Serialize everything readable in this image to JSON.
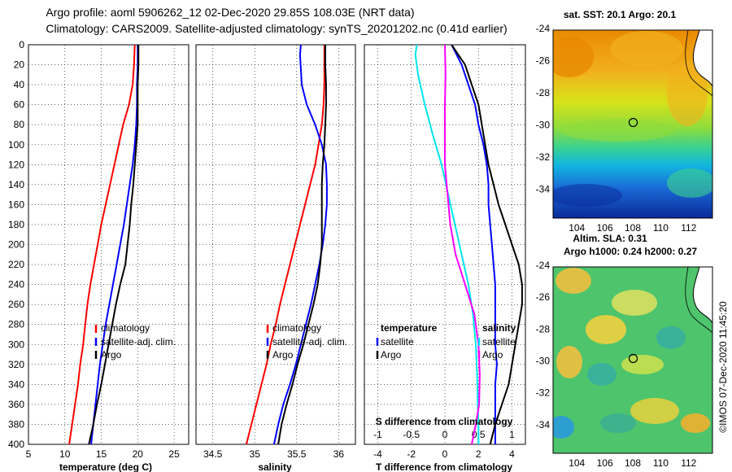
{
  "header": {
    "line1": "Argo profile: aoml 5906262_12 02-Dec-2020 29.85S 108.03E (NRT data)",
    "line2": "Climatology: CARS2009. Satellite-adjusted climatology: synTS_20201202.nc (0.41d earlier)"
  },
  "side_label": "©IMOS 07-Dec-2020 11:45:20",
  "colors": {
    "climatology": "#ff0000",
    "satellite": "#0000ff",
    "argo": "#000000",
    "cyan": "#00e5ee",
    "magenta": "#ff00ff"
  },
  "chart_data": [
    {
      "type": "line",
      "title": "",
      "xlabel": "temperature (deg C)",
      "ylabel": "",
      "xlim": [
        5,
        27
      ],
      "ylim": [
        400,
        0
      ],
      "x_ticks": [
        "5",
        "10",
        "15",
        "20",
        "25"
      ],
      "y_ticks": [
        "0",
        "20",
        "40",
        "60",
        "80",
        "100",
        "120",
        "140",
        "160",
        "180",
        "200",
        "220",
        "240",
        "260",
        "280",
        "300",
        "320",
        "340",
        "360",
        "380",
        "400"
      ],
      "legend": [
        "climatology",
        "satellite-adj. clim.",
        "Argo"
      ],
      "series": [
        {
          "name": "climatology",
          "color": "#ff0000",
          "points": [
            [
              19.6,
              0
            ],
            [
              19.5,
              20
            ],
            [
              19.3,
              40
            ],
            [
              18.8,
              60
            ],
            [
              18.0,
              80
            ],
            [
              17.4,
              100
            ],
            [
              16.8,
              120
            ],
            [
              16.2,
              140
            ],
            [
              15.6,
              160
            ],
            [
              15.0,
              180
            ],
            [
              14.5,
              200
            ],
            [
              14.0,
              220
            ],
            [
              13.5,
              240
            ],
            [
              13.1,
              260
            ],
            [
              12.8,
              280
            ],
            [
              12.5,
              300
            ],
            [
              12.1,
              320
            ],
            [
              11.8,
              340
            ],
            [
              11.4,
              360
            ],
            [
              11.0,
              380
            ],
            [
              10.6,
              400
            ]
          ]
        },
        {
          "name": "satellite-adj. clim.",
          "color": "#0000ff",
          "points": [
            [
              20.0,
              0
            ],
            [
              20.0,
              20
            ],
            [
              19.9,
              40
            ],
            [
              19.9,
              60
            ],
            [
              19.8,
              80
            ],
            [
              19.6,
              100
            ],
            [
              19.3,
              120
            ],
            [
              18.9,
              140
            ],
            [
              18.5,
              160
            ],
            [
              18.1,
              180
            ],
            [
              17.6,
              200
            ],
            [
              17.1,
              220
            ],
            [
              16.6,
              240
            ],
            [
              16.1,
              260
            ],
            [
              15.6,
              280
            ],
            [
              15.2,
              300
            ],
            [
              14.8,
              320
            ],
            [
              14.5,
              340
            ],
            [
              14.2,
              360
            ],
            [
              13.9,
              380
            ],
            [
              13.6,
              400
            ]
          ]
        },
        {
          "name": "Argo",
          "color": "#000000",
          "points": [
            [
              20.1,
              0
            ],
            [
              20.1,
              20
            ],
            [
              20.0,
              40
            ],
            [
              20.0,
              60
            ],
            [
              20.0,
              80
            ],
            [
              19.8,
              100
            ],
            [
              19.6,
              120
            ],
            [
              19.4,
              140
            ],
            [
              19.1,
              160
            ],
            [
              18.9,
              180
            ],
            [
              18.6,
              200
            ],
            [
              18.3,
              220
            ],
            [
              17.6,
              240
            ],
            [
              17.0,
              260
            ],
            [
              16.5,
              280
            ],
            [
              16.0,
              300
            ],
            [
              15.5,
              320
            ],
            [
              15.0,
              340
            ],
            [
              14.4,
              360
            ],
            [
              13.9,
              380
            ],
            [
              13.3,
              400
            ]
          ]
        }
      ]
    },
    {
      "type": "line",
      "title": "",
      "xlabel": "salinity",
      "ylabel": "",
      "xlim": [
        34.3,
        36.2
      ],
      "ylim": [
        400,
        0
      ],
      "x_ticks": [
        "34.5",
        "35",
        "35.5",
        "36"
      ],
      "legend": [
        "climatology",
        "satellite-adj. clim.",
        "Argo"
      ],
      "series": [
        {
          "name": "climatology",
          "color": "#ff0000",
          "points": [
            [
              35.83,
              0
            ],
            [
              35.83,
              20
            ],
            [
              35.83,
              40
            ],
            [
              35.82,
              60
            ],
            [
              35.8,
              80
            ],
            [
              35.76,
              100
            ],
            [
              35.72,
              120
            ],
            [
              35.66,
              140
            ],
            [
              35.6,
              160
            ],
            [
              35.54,
              180
            ],
            [
              35.48,
              200
            ],
            [
              35.42,
              220
            ],
            [
              35.36,
              240
            ],
            [
              35.3,
              260
            ],
            [
              35.25,
              280
            ],
            [
              35.19,
              300
            ],
            [
              35.14,
              320
            ],
            [
              35.08,
              340
            ],
            [
              35.02,
              360
            ],
            [
              34.96,
              380
            ],
            [
              34.9,
              400
            ]
          ]
        },
        {
          "name": "satellite-adj. clim.",
          "color": "#0000ff",
          "points": [
            [
              35.55,
              0
            ],
            [
              35.54,
              10
            ],
            [
              35.56,
              40
            ],
            [
              35.62,
              60
            ],
            [
              35.72,
              80
            ],
            [
              35.8,
              100
            ],
            [
              35.85,
              120
            ],
            [
              35.86,
              140
            ],
            [
              35.86,
              160
            ],
            [
              35.84,
              180
            ],
            [
              35.81,
              200
            ],
            [
              35.77,
              220
            ],
            [
              35.72,
              240
            ],
            [
              35.67,
              260
            ],
            [
              35.61,
              280
            ],
            [
              35.55,
              300
            ],
            [
              35.49,
              320
            ],
            [
              35.42,
              340
            ],
            [
              35.34,
              360
            ],
            [
              35.28,
              380
            ],
            [
              35.23,
              400
            ]
          ]
        },
        {
          "name": "Argo",
          "color": "#000000",
          "points": [
            [
              35.84,
              0
            ],
            [
              35.84,
              20
            ],
            [
              35.85,
              40
            ],
            [
              35.85,
              60
            ],
            [
              35.84,
              80
            ],
            [
              35.83,
              100
            ],
            [
              35.81,
              120
            ],
            [
              35.8,
              140
            ],
            [
              35.8,
              160
            ],
            [
              35.8,
              180
            ],
            [
              35.8,
              200
            ],
            [
              35.78,
              220
            ],
            [
              35.75,
              240
            ],
            [
              35.7,
              260
            ],
            [
              35.64,
              280
            ],
            [
              35.58,
              300
            ],
            [
              35.51,
              320
            ],
            [
              35.45,
              340
            ],
            [
              35.38,
              360
            ],
            [
              35.32,
              380
            ],
            [
              35.28,
              400
            ]
          ]
        }
      ]
    },
    {
      "type": "line",
      "title": "",
      "xlabel": "T difference from climatology",
      "ylabel": "",
      "xlim": [
        -4.8,
        4.8
      ],
      "ylim": [
        400,
        0
      ],
      "x_ticks": [
        "-4",
        "-2",
        "0",
        "2",
        "4"
      ],
      "secondary_xlabel": "S difference from climatology",
      "secondary_xlim": [
        -1.2,
        1.2
      ],
      "secondary_x_ticks": [
        "-1",
        "-0.5",
        "0",
        "0.5",
        "1"
      ],
      "legend_left": [
        "temperature",
        "satellite",
        "Argo"
      ],
      "legend_right": [
        "salinity",
        "satellite",
        "Argo"
      ],
      "series": [
        {
          "name": "T satellite",
          "color": "#0000ff",
          "points": [
            [
              0.4,
              0
            ],
            [
              1.0,
              20
            ],
            [
              1.4,
              40
            ],
            [
              1.8,
              60
            ],
            [
              2.0,
              80
            ],
            [
              2.3,
              100
            ],
            [
              2.5,
              120
            ],
            [
              2.6,
              140
            ],
            [
              2.6,
              160
            ],
            [
              2.7,
              180
            ],
            [
              2.8,
              200
            ],
            [
              2.9,
              220
            ],
            [
              3.0,
              240
            ],
            [
              3.0,
              260
            ],
            [
              3.0,
              280
            ],
            [
              3.0,
              300
            ],
            [
              3.1,
              320
            ],
            [
              3.0,
              340
            ],
            [
              3.0,
              360
            ],
            [
              3.0,
              380
            ],
            [
              3.0,
              400
            ]
          ]
        },
        {
          "name": "T Argo",
          "color": "#000000",
          "points": [
            [
              0.4,
              0
            ],
            [
              1.2,
              20
            ],
            [
              1.6,
              40
            ],
            [
              2.0,
              60
            ],
            [
              2.2,
              80
            ],
            [
              2.4,
              100
            ],
            [
              2.6,
              120
            ],
            [
              2.9,
              140
            ],
            [
              3.2,
              160
            ],
            [
              3.6,
              180
            ],
            [
              4.0,
              200
            ],
            [
              4.4,
              220
            ],
            [
              4.6,
              240
            ],
            [
              4.6,
              260
            ],
            [
              4.4,
              280
            ],
            [
              4.2,
              300
            ],
            [
              4.0,
              320
            ],
            [
              3.8,
              340
            ],
            [
              3.4,
              360
            ],
            [
              3.0,
              380
            ],
            [
              2.7,
              400
            ]
          ]
        },
        {
          "name": "S satellite",
          "color": "#00e5ee",
          "points": [
            [
              -0.42,
              0
            ],
            [
              -0.44,
              10
            ],
            [
              -0.4,
              30
            ],
            [
              -0.3,
              60
            ],
            [
              -0.18,
              90
            ],
            [
              -0.05,
              120
            ],
            [
              0.05,
              150
            ],
            [
              0.15,
              180
            ],
            [
              0.25,
              210
            ],
            [
              0.35,
              240
            ],
            [
              0.42,
              270
            ],
            [
              0.46,
              300
            ],
            [
              0.48,
              330
            ],
            [
              0.49,
              360
            ],
            [
              0.5,
              380
            ],
            [
              0.5,
              400
            ]
          ]
        },
        {
          "name": "S Argo",
          "color": "#ff00ff",
          "points": [
            [
              0.0,
              0
            ],
            [
              0.01,
              30
            ],
            [
              0.0,
              60
            ],
            [
              0.0,
              90
            ],
            [
              0.0,
              120
            ],
            [
              0.04,
              150
            ],
            [
              0.08,
              180
            ],
            [
              0.16,
              210
            ],
            [
              0.3,
              240
            ],
            [
              0.44,
              270
            ],
            [
              0.5,
              300
            ],
            [
              0.52,
              330
            ],
            [
              0.51,
              360
            ],
            [
              0.46,
              380
            ],
            [
              0.4,
              400
            ]
          ]
        }
      ]
    },
    {
      "type": "heatmap",
      "title": "sat. SST: 20.1  Argo: 20.1",
      "xlabel": "",
      "ylabel": "",
      "xlim": [
        102.3,
        113.7
      ],
      "ylim": [
        -35.8,
        -24.1
      ],
      "x_ticks": [
        "104",
        "106",
        "108",
        "110",
        "112"
      ],
      "y_ticks": [
        "-24",
        "-26",
        "-28",
        "-30",
        "-32",
        "-34"
      ],
      "marker": {
        "lon": 108.03,
        "lat": -29.85
      }
    },
    {
      "type": "heatmap",
      "title": "Argo h1000: 0.24 h2000: 0.27",
      "subtitle": "Altim. SLA: 0.31",
      "xlabel": "",
      "ylabel": "",
      "xlim": [
        102.3,
        113.7
      ],
      "ylim": [
        -35.8,
        -24.1
      ],
      "x_ticks": [
        "104",
        "106",
        "108",
        "110",
        "112"
      ],
      "y_ticks": [
        "-24",
        "-26",
        "-28",
        "-30",
        "-32",
        "-34"
      ],
      "marker": {
        "lon": 108.03,
        "lat": -29.85
      }
    }
  ]
}
